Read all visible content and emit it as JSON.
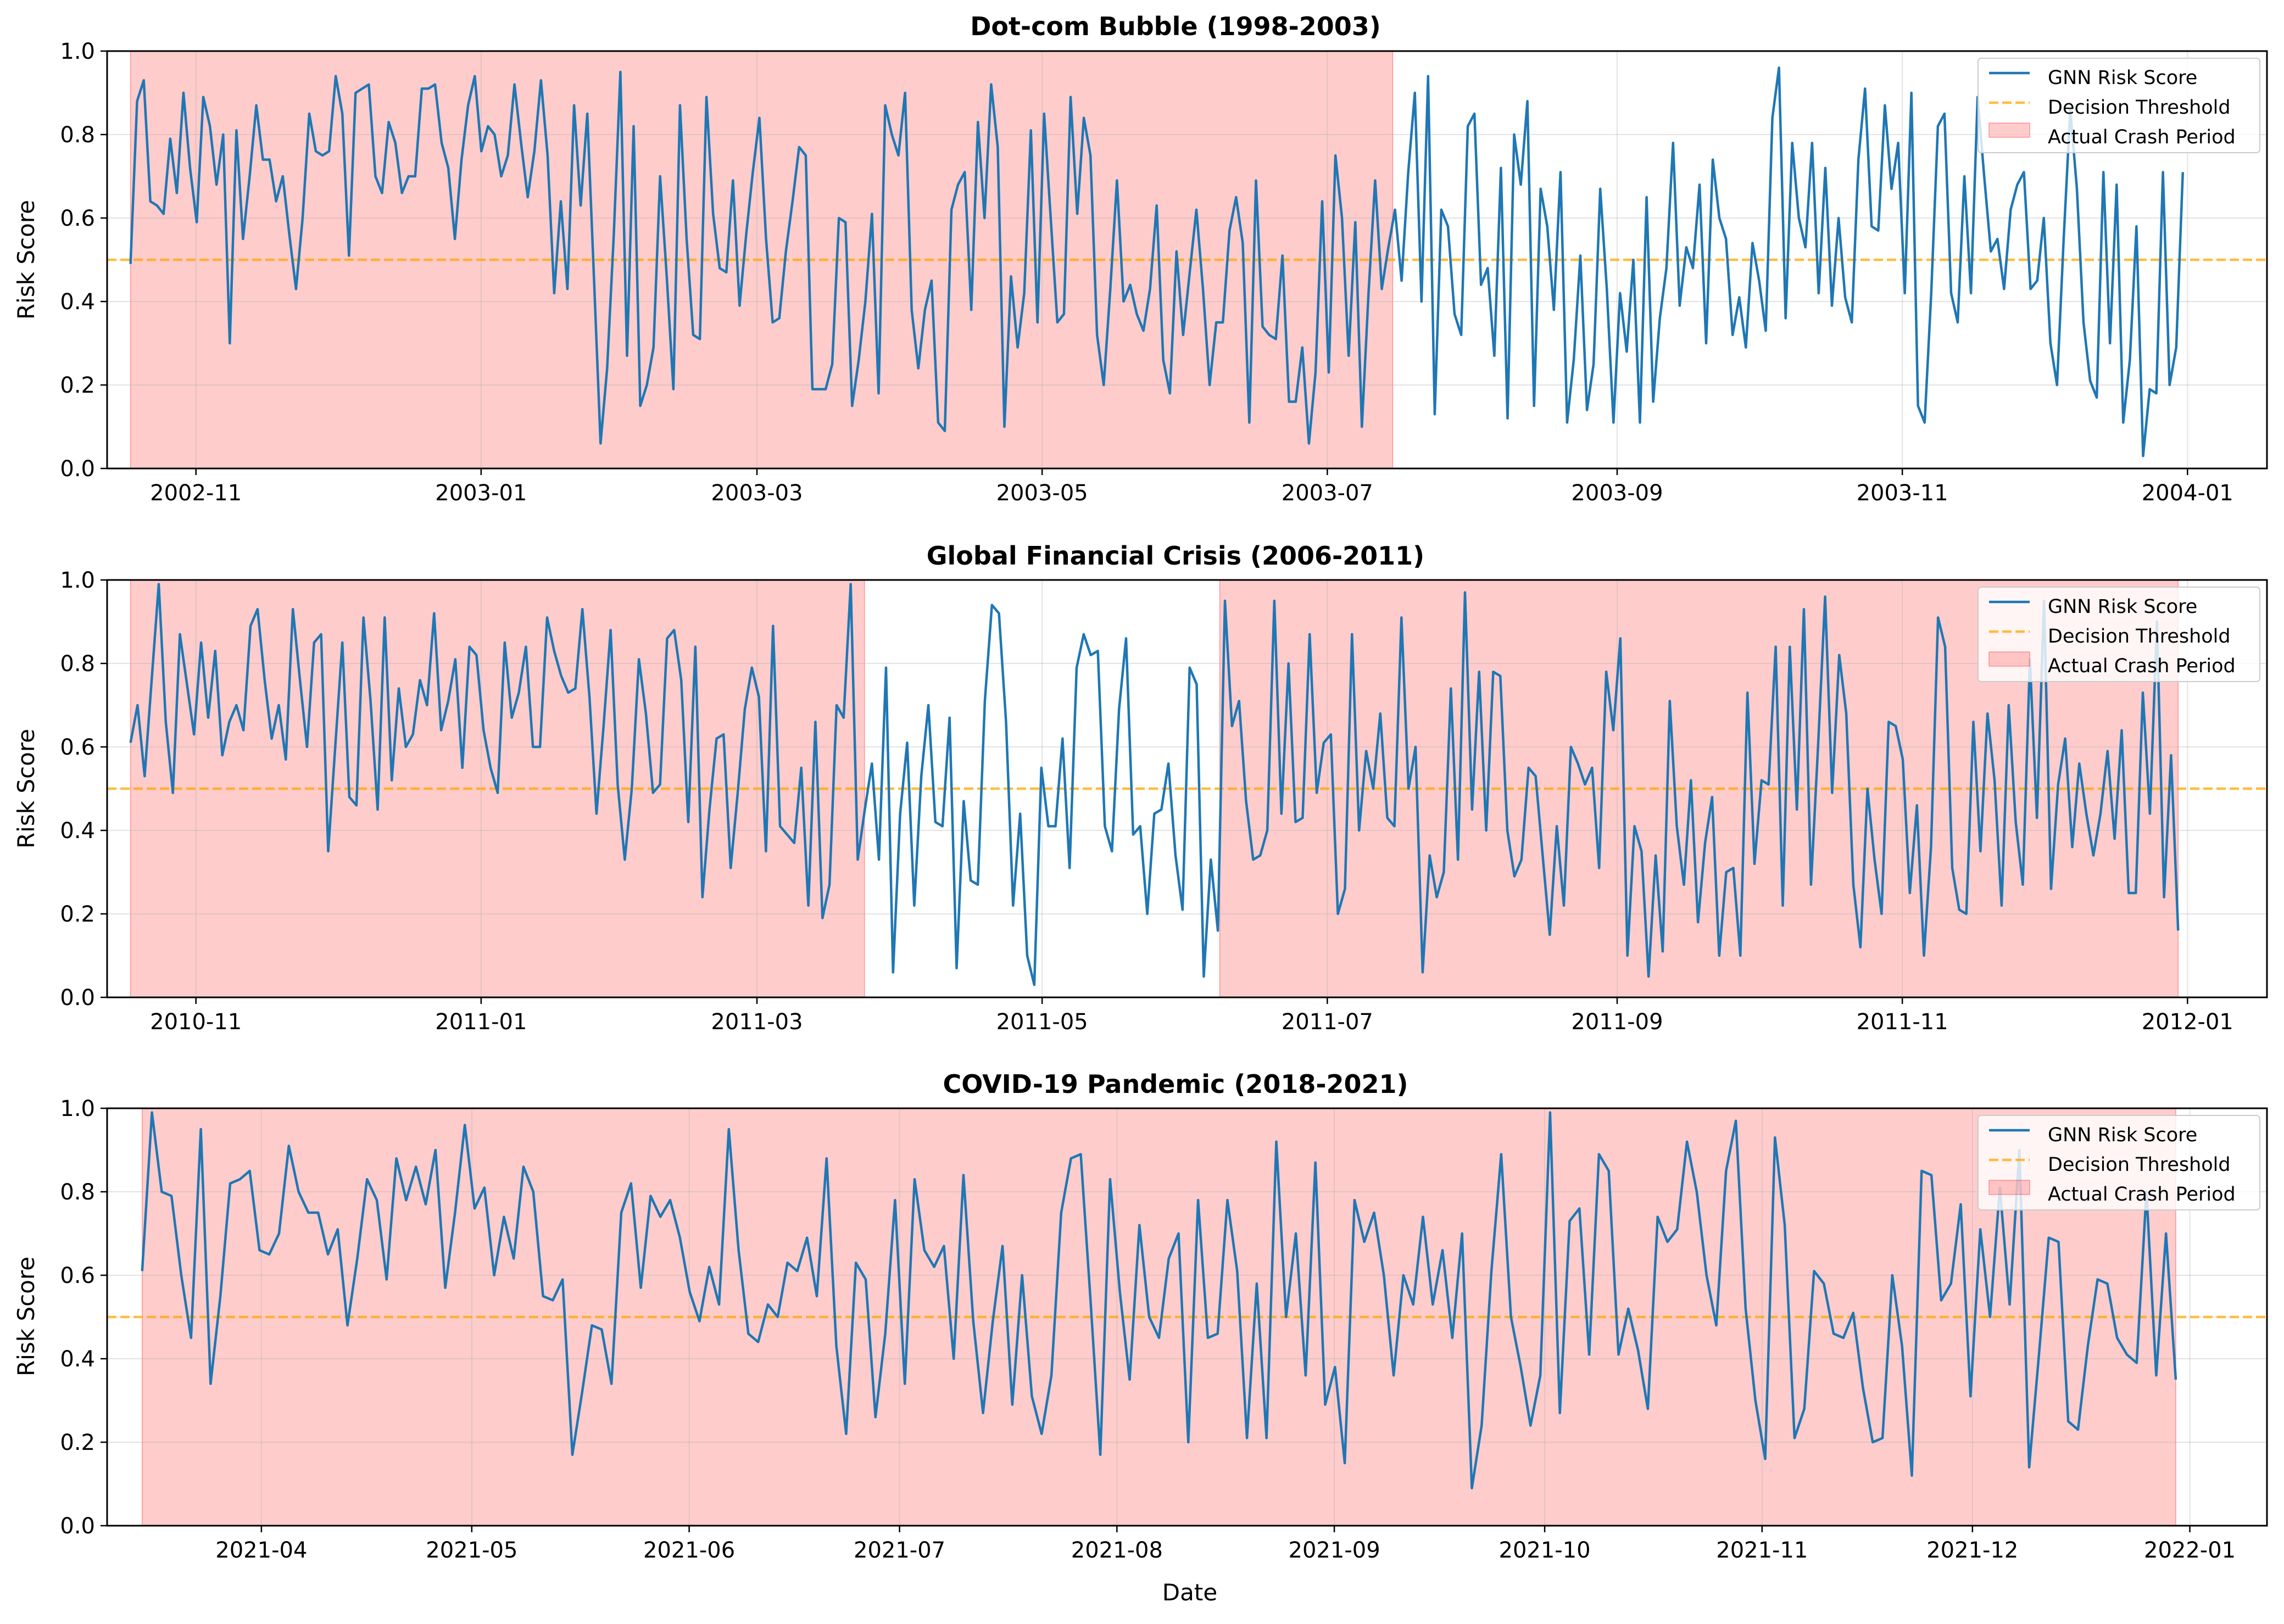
{
  "figure": {
    "xlabel": "Date"
  },
  "colors": {
    "series": "#1f77b4",
    "threshold": "#ffa500",
    "crash_fill": "#ff0000",
    "grid": "#b0b0b0"
  },
  "chart_data": [
    {
      "type": "line",
      "title": "Dot-com Bubble (1998-2003)",
      "xlabel": "",
      "ylabel": "Risk Score",
      "ylim": [
        0,
        1
      ],
      "yticks": [
        "0.0",
        "0.2",
        "0.4",
        "0.6",
        "0.8",
        "1.0"
      ],
      "x_range": [
        "2002-10-13",
        "2004-01-18"
      ],
      "xticks": [
        {
          "date": "2002-11-01",
          "label": "2002-11"
        },
        {
          "date": "2003-01-01",
          "label": "2003-01"
        },
        {
          "date": "2003-03-01",
          "label": "2003-03"
        },
        {
          "date": "2003-05-01",
          "label": "2003-05"
        },
        {
          "date": "2003-07-01",
          "label": "2003-07"
        },
        {
          "date": "2003-09-01",
          "label": "2003-09"
        },
        {
          "date": "2003-11-01",
          "label": "2003-11"
        },
        {
          "date": "2004-01-01",
          "label": "2004-01"
        }
      ],
      "threshold": 0.5,
      "crash_periods": [
        [
          "2002-10-18",
          "2003-07-15"
        ]
      ],
      "legend": [
        "GNN Risk Score",
        "Decision Threshold",
        "Actual Crash Period"
      ],
      "legend_position": "upper right",
      "series": [
        {
          "name": "GNN Risk Score",
          "x_start": "2002-10-18",
          "x_end": "2003-12-31",
          "values": [
            0.49,
            0.88,
            0.93,
            0.64,
            0.63,
            0.61,
            0.79,
            0.66,
            0.9,
            0.72,
            0.59,
            0.89,
            0.82,
            0.68,
            0.8,
            0.3,
            0.81,
            0.55,
            0.7,
            0.87,
            0.74,
            0.74,
            0.64,
            0.7,
            0.56,
            0.43,
            0.6,
            0.85,
            0.76,
            0.75,
            0.76,
            0.94,
            0.85,
            0.51,
            0.9,
            0.91,
            0.92,
            0.7,
            0.66,
            0.83,
            0.78,
            0.66,
            0.7,
            0.7,
            0.91,
            0.91,
            0.92,
            0.78,
            0.72,
            0.55,
            0.74,
            0.87,
            0.94,
            0.76,
            0.82,
            0.8,
            0.7,
            0.75,
            0.92,
            0.78,
            0.65,
            0.76,
            0.93,
            0.75,
            0.42,
            0.64,
            0.43,
            0.87,
            0.63,
            0.85,
            0.46,
            0.06,
            0.24,
            0.56,
            0.95,
            0.27,
            0.82,
            0.15,
            0.2,
            0.29,
            0.7,
            0.46,
            0.19,
            0.87,
            0.55,
            0.32,
            0.31,
            0.89,
            0.61,
            0.48,
            0.47,
            0.69,
            0.39,
            0.56,
            0.71,
            0.84,
            0.55,
            0.35,
            0.36,
            0.52,
            0.64,
            0.77,
            0.75,
            0.19,
            0.19,
            0.19,
            0.25,
            0.6,
            0.59,
            0.15,
            0.26,
            0.4,
            0.61,
            0.18,
            0.87,
            0.8,
            0.75,
            0.9,
            0.38,
            0.24,
            0.38,
            0.45,
            0.11,
            0.09,
            0.62,
            0.68,
            0.71,
            0.38,
            0.83,
            0.6,
            0.92,
            0.77,
            0.1,
            0.46,
            0.29,
            0.42,
            0.81,
            0.35,
            0.85,
            0.6,
            0.35,
            0.37,
            0.89,
            0.61,
            0.84,
            0.75,
            0.32,
            0.2,
            0.43,
            0.69,
            0.4,
            0.44,
            0.37,
            0.33,
            0.43,
            0.63,
            0.26,
            0.18,
            0.52,
            0.32,
            0.47,
            0.62,
            0.43,
            0.2,
            0.35,
            0.35,
            0.57,
            0.65,
            0.54,
            0.11,
            0.69,
            0.34,
            0.32,
            0.31,
            0.51,
            0.16,
            0.16,
            0.29,
            0.06,
            0.23,
            0.64,
            0.23,
            0.75,
            0.6,
            0.27,
            0.59,
            0.1,
            0.42,
            0.69,
            0.43,
            0.53,
            0.62,
            0.45,
            0.71,
            0.9,
            0.4,
            0.94,
            0.13,
            0.62,
            0.58,
            0.37,
            0.32,
            0.82,
            0.85,
            0.44,
            0.48,
            0.27,
            0.72,
            0.12,
            0.8,
            0.68,
            0.88,
            0.15,
            0.67,
            0.58,
            0.38,
            0.71,
            0.11,
            0.26,
            0.51,
            0.14,
            0.25,
            0.67,
            0.43,
            0.11,
            0.42,
            0.28,
            0.5,
            0.11,
            0.65,
            0.16,
            0.36,
            0.48,
            0.78,
            0.39,
            0.53,
            0.48,
            0.68,
            0.3,
            0.74,
            0.6,
            0.55,
            0.32,
            0.41,
            0.29,
            0.54,
            0.45,
            0.33,
            0.84,
            0.96,
            0.36,
            0.78,
            0.6,
            0.53,
            0.78,
            0.42,
            0.72,
            0.39,
            0.6,
            0.41,
            0.35,
            0.74,
            0.91,
            0.58,
            0.57,
            0.87,
            0.67,
            0.78,
            0.42,
            0.9,
            0.15,
            0.11,
            0.42,
            0.82,
            0.85,
            0.42,
            0.35,
            0.7,
            0.42,
            0.89,
            0.7,
            0.52,
            0.55,
            0.43,
            0.62,
            0.68,
            0.71,
            0.43,
            0.45,
            0.6,
            0.3,
            0.2,
            0.55,
            0.86,
            0.67,
            0.35,
            0.21,
            0.17,
            0.71,
            0.3,
            0.68,
            0.11,
            0.26,
            0.58,
            0.03,
            0.19,
            0.18,
            0.71,
            0.2,
            0.29,
            0.71
          ]
        }
      ]
    },
    {
      "type": "line",
      "title": "Global Financial Crisis (2006-2011)",
      "xlabel": "",
      "ylabel": "Risk Score",
      "ylim": [
        0,
        1
      ],
      "yticks": [
        "0.0",
        "0.2",
        "0.4",
        "0.6",
        "0.8",
        "1.0"
      ],
      "x_range": [
        "2010-10-13",
        "2012-01-18"
      ],
      "xticks": [
        {
          "date": "2010-11-01",
          "label": "2010-11"
        },
        {
          "date": "2011-01-01",
          "label": "2011-01"
        },
        {
          "date": "2011-03-01",
          "label": "2011-03"
        },
        {
          "date": "2011-05-01",
          "label": "2011-05"
        },
        {
          "date": "2011-07-01",
          "label": "2011-07"
        },
        {
          "date": "2011-09-01",
          "label": "2011-09"
        },
        {
          "date": "2011-11-01",
          "label": "2011-11"
        },
        {
          "date": "2012-01-01",
          "label": "2012-01"
        }
      ],
      "threshold": 0.5,
      "crash_periods": [
        [
          "2010-10-18",
          "2011-03-24"
        ],
        [
          "2011-06-08",
          "2011-12-30"
        ]
      ],
      "legend": [
        "GNN Risk Score",
        "Decision Threshold",
        "Actual Crash Period"
      ],
      "legend_position": "upper right",
      "series": [
        {
          "name": "GNN Risk Score",
          "x_start": "2010-10-18",
          "x_end": "2011-12-30",
          "values": [
            0.61,
            0.7,
            0.53,
            0.76,
            0.99,
            0.66,
            0.49,
            0.87,
            0.75,
            0.63,
            0.85,
            0.67,
            0.83,
            0.58,
            0.66,
            0.7,
            0.64,
            0.89,
            0.93,
            0.76,
            0.62,
            0.7,
            0.57,
            0.93,
            0.76,
            0.6,
            0.85,
            0.87,
            0.35,
            0.6,
            0.85,
            0.48,
            0.46,
            0.91,
            0.71,
            0.45,
            0.91,
            0.52,
            0.74,
            0.6,
            0.63,
            0.76,
            0.7,
            0.92,
            0.64,
            0.71,
            0.81,
            0.55,
            0.84,
            0.82,
            0.64,
            0.55,
            0.49,
            0.85,
            0.67,
            0.73,
            0.84,
            0.6,
            0.6,
            0.91,
            0.83,
            0.77,
            0.73,
            0.74,
            0.93,
            0.72,
            0.44,
            0.65,
            0.88,
            0.51,
            0.33,
            0.5,
            0.81,
            0.68,
            0.49,
            0.51,
            0.86,
            0.88,
            0.76,
            0.42,
            0.84,
            0.24,
            0.45,
            0.62,
            0.63,
            0.31,
            0.49,
            0.69,
            0.79,
            0.72,
            0.35,
            0.89,
            0.41,
            0.39,
            0.37,
            0.55,
            0.22,
            0.66,
            0.19,
            0.27,
            0.7,
            0.67,
            0.99,
            0.33,
            0.45,
            0.56,
            0.33,
            0.79,
            0.06,
            0.44,
            0.61,
            0.22,
            0.53,
            0.7,
            0.42,
            0.41,
            0.67,
            0.07,
            0.47,
            0.28,
            0.27,
            0.71,
            0.94,
            0.92,
            0.66,
            0.22,
            0.44,
            0.1,
            0.03,
            0.55,
            0.41,
            0.41,
            0.62,
            0.31,
            0.79,
            0.87,
            0.82,
            0.83,
            0.41,
            0.35,
            0.69,
            0.86,
            0.39,
            0.41,
            0.2,
            0.44,
            0.45,
            0.56,
            0.34,
            0.21,
            0.79,
            0.75,
            0.05,
            0.33,
            0.16,
            0.95,
            0.65,
            0.71,
            0.47,
            0.33,
            0.34,
            0.4,
            0.95,
            0.44,
            0.8,
            0.42,
            0.43,
            0.87,
            0.49,
            0.61,
            0.63,
            0.2,
            0.26,
            0.87,
            0.4,
            0.59,
            0.5,
            0.68,
            0.43,
            0.41,
            0.91,
            0.5,
            0.6,
            0.06,
            0.34,
            0.24,
            0.3,
            0.74,
            0.33,
            0.97,
            0.45,
            0.78,
            0.4,
            0.78,
            0.77,
            0.4,
            0.29,
            0.33,
            0.55,
            0.53,
            0.34,
            0.15,
            0.41,
            0.22,
            0.6,
            0.56,
            0.51,
            0.55,
            0.31,
            0.78,
            0.64,
            0.86,
            0.1,
            0.41,
            0.35,
            0.05,
            0.34,
            0.11,
            0.71,
            0.41,
            0.27,
            0.52,
            0.18,
            0.37,
            0.48,
            0.1,
            0.3,
            0.31,
            0.1,
            0.73,
            0.32,
            0.52,
            0.51,
            0.84,
            0.22,
            0.84,
            0.45,
            0.93,
            0.27,
            0.6,
            0.96,
            0.49,
            0.82,
            0.68,
            0.27,
            0.12,
            0.5,
            0.33,
            0.2,
            0.66,
            0.65,
            0.57,
            0.25,
            0.46,
            0.1,
            0.36,
            0.91,
            0.84,
            0.31,
            0.21,
            0.2,
            0.66,
            0.35,
            0.68,
            0.52,
            0.22,
            0.7,
            0.42,
            0.27,
            0.81,
            0.43,
            0.95,
            0.26,
            0.51,
            0.62,
            0.36,
            0.56,
            0.44,
            0.34,
            0.44,
            0.59,
            0.38,
            0.64,
            0.25,
            0.25,
            0.73,
            0.44,
            0.9,
            0.24,
            0.58,
            0.16
          ]
        }
      ]
    },
    {
      "type": "line",
      "title": "COVID-19 Pandemic (2018-2021)",
      "xlabel": "Date",
      "ylabel": "Risk Score",
      "ylim": [
        0,
        1
      ],
      "yticks": [
        "0.0",
        "0.2",
        "0.4",
        "0.6",
        "0.8",
        "1.0"
      ],
      "x_range": [
        "2021-03-10",
        "2022-01-12"
      ],
      "xticks": [
        {
          "date": "2021-04-01",
          "label": "2021-04"
        },
        {
          "date": "2021-05-01",
          "label": "2021-05"
        },
        {
          "date": "2021-06-01",
          "label": "2021-06"
        },
        {
          "date": "2021-07-01",
          "label": "2021-07"
        },
        {
          "date": "2021-08-01",
          "label": "2021-08"
        },
        {
          "date": "2021-09-01",
          "label": "2021-09"
        },
        {
          "date": "2021-10-01",
          "label": "2021-10"
        },
        {
          "date": "2021-11-01",
          "label": "2021-11"
        },
        {
          "date": "2021-12-01",
          "label": "2021-12"
        },
        {
          "date": "2022-01-01",
          "label": "2022-01"
        }
      ],
      "threshold": 0.5,
      "crash_periods": [
        [
          "2021-03-15",
          "2021-12-30"
        ]
      ],
      "legend": [
        "GNN Risk Score",
        "Decision Threshold",
        "Actual Crash Period"
      ],
      "legend_position": "upper right",
      "series": [
        {
          "name": "GNN Risk Score",
          "x_start": "2021-03-15",
          "x_end": "2021-12-30",
          "values": [
            0.61,
            0.99,
            0.8,
            0.79,
            0.6,
            0.45,
            0.95,
            0.34,
            0.55,
            0.82,
            0.83,
            0.85,
            0.66,
            0.65,
            0.7,
            0.91,
            0.8,
            0.75,
            0.75,
            0.65,
            0.71,
            0.48,
            0.64,
            0.83,
            0.78,
            0.59,
            0.88,
            0.78,
            0.86,
            0.77,
            0.9,
            0.57,
            0.75,
            0.96,
            0.76,
            0.81,
            0.6,
            0.74,
            0.64,
            0.86,
            0.8,
            0.55,
            0.54,
            0.59,
            0.17,
            0.32,
            0.48,
            0.47,
            0.34,
            0.75,
            0.82,
            0.57,
            0.79,
            0.74,
            0.78,
            0.69,
            0.56,
            0.49,
            0.62,
            0.53,
            0.95,
            0.66,
            0.46,
            0.44,
            0.53,
            0.5,
            0.63,
            0.61,
            0.69,
            0.55,
            0.88,
            0.43,
            0.22,
            0.63,
            0.59,
            0.26,
            0.46,
            0.78,
            0.34,
            0.83,
            0.66,
            0.62,
            0.67,
            0.4,
            0.84,
            0.49,
            0.27,
            0.49,
            0.67,
            0.29,
            0.6,
            0.31,
            0.22,
            0.36,
            0.75,
            0.88,
            0.89,
            0.54,
            0.17,
            0.83,
            0.56,
            0.35,
            0.72,
            0.5,
            0.45,
            0.64,
            0.7,
            0.2,
            0.78,
            0.45,
            0.46,
            0.78,
            0.61,
            0.21,
            0.58,
            0.21,
            0.92,
            0.5,
            0.7,
            0.36,
            0.87,
            0.29,
            0.38,
            0.15,
            0.78,
            0.68,
            0.75,
            0.6,
            0.36,
            0.6,
            0.53,
            0.74,
            0.53,
            0.66,
            0.45,
            0.7,
            0.09,
            0.24,
            0.61,
            0.89,
            0.5,
            0.38,
            0.24,
            0.36,
            0.99,
            0.27,
            0.73,
            0.76,
            0.41,
            0.89,
            0.85,
            0.41,
            0.52,
            0.42,
            0.28,
            0.74,
            0.68,
            0.71,
            0.92,
            0.8,
            0.6,
            0.48,
            0.85,
            0.97,
            0.52,
            0.3,
            0.16,
            0.93,
            0.72,
            0.21,
            0.28,
            0.61,
            0.58,
            0.46,
            0.45,
            0.51,
            0.33,
            0.2,
            0.21,
            0.6,
            0.43,
            0.12,
            0.85,
            0.84,
            0.54,
            0.58,
            0.77,
            0.31,
            0.71,
            0.5,
            0.81,
            0.53,
            0.9,
            0.14,
            0.41,
            0.69,
            0.68,
            0.25,
            0.23,
            0.43,
            0.59,
            0.58,
            0.45,
            0.41,
            0.39,
            0.8,
            0.36,
            0.7,
            0.35
          ]
        }
      ]
    }
  ]
}
